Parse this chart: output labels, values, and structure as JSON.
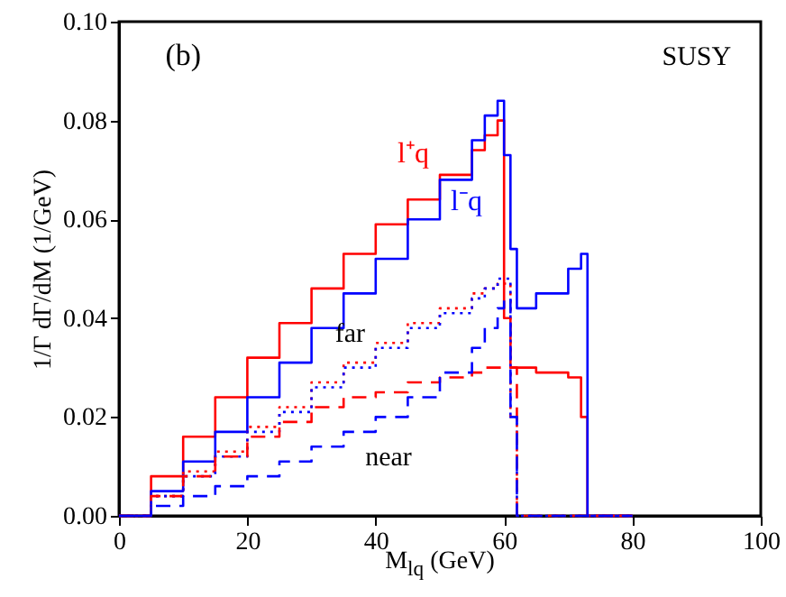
{
  "chart_data": {
    "type": "step",
    "xlabel": "M$_{lq}$ (GeV)",
    "ylabel": "1/Γ dΓ/dM (1/GeV)",
    "annotations": [
      "(b)",
      "SUSY",
      "far",
      "near"
    ],
    "x": [
      0,
      5,
      10,
      15,
      20,
      25,
      30,
      35,
      40,
      45,
      50,
      55,
      57,
      59,
      60,
      61,
      62,
      65,
      70,
      72,
      73,
      80
    ],
    "series": [
      {
        "name": "l⁺q",
        "color": "#ff0000",
        "line_style": "solid",
        "values": [
          0,
          0.008,
          0.016,
          0.024,
          0.032,
          0.039,
          0.046,
          0.053,
          0.059,
          0.064,
          0.069,
          0.074,
          0.077,
          0.08,
          0.04,
          0.03,
          0.03,
          0.029,
          0.028,
          0.02,
          0,
          0
        ]
      },
      {
        "name": "l⁻q",
        "color": "#0000ff",
        "line_style": "solid",
        "values": [
          0,
          0.005,
          0.011,
          0.017,
          0.024,
          0.031,
          0.038,
          0.045,
          0.052,
          0.06,
          0.068,
          0.076,
          0.081,
          0.084,
          0.073,
          0.054,
          0.042,
          0.045,
          0.05,
          0.053,
          0,
          0
        ]
      },
      {
        "color": "#ff0000",
        "line_style": "dotted",
        "values": [
          0,
          0.004,
          0.009,
          0.013,
          0.018,
          0.022,
          0.027,
          0.031,
          0.035,
          0.039,
          0.042,
          0.045,
          0.046,
          0.047,
          0.047,
          0.02,
          0,
          0,
          0,
          0,
          0,
          0
        ]
      },
      {
        "color": "#0000ff",
        "line_style": "dotted",
        "values": [
          0,
          0.004,
          0.008,
          0.012,
          0.017,
          0.021,
          0.026,
          0.03,
          0.034,
          0.038,
          0.041,
          0.044,
          0.046,
          0.048,
          0.048,
          0.02,
          0,
          0,
          0,
          0,
          0,
          0
        ]
      },
      {
        "color": "#ff0000",
        "line_style": "dashed",
        "values": [
          0,
          0.004,
          0.008,
          0.012,
          0.016,
          0.019,
          0.022,
          0.024,
          0.025,
          0.027,
          0.028,
          0.029,
          0.03,
          0.03,
          0.03,
          0.03,
          0,
          0,
          0,
          0,
          0,
          0
        ]
      },
      {
        "color": "#0000ff",
        "line_style": "dashed",
        "values": [
          0,
          0.002,
          0.004,
          0.006,
          0.008,
          0.011,
          0.014,
          0.017,
          0.02,
          0.024,
          0.029,
          0.034,
          0.038,
          0.042,
          0.044,
          0.02,
          0,
          0,
          0,
          0,
          0,
          0
        ]
      }
    ],
    "xlim": [
      0,
      100
    ],
    "xticks": [
      0,
      20,
      40,
      60,
      80,
      100
    ],
    "ylim": [
      0,
      0.1
    ],
    "yticks": [
      {
        "value": 0,
        "label": "0.00"
      },
      {
        "value": 0.02,
        "label": "0.02"
      },
      {
        "value": 0.04,
        "label": "0.04"
      },
      {
        "value": 0.06,
        "label": "0.06"
      },
      {
        "value": 0.08,
        "label": "0.08"
      },
      {
        "value": 0.1,
        "label": "0.10"
      }
    ],
    "grid": false,
    "marker": "none"
  }
}
